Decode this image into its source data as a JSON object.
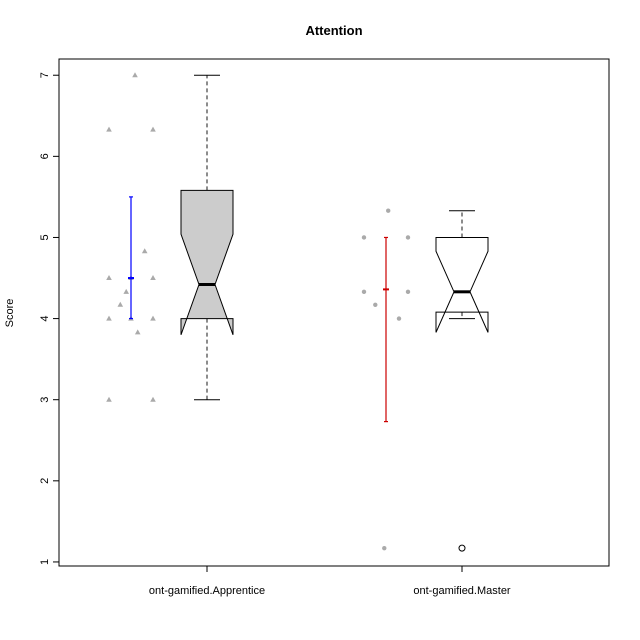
{
  "chart_data": {
    "type": "boxplot",
    "title": "Attention",
    "xlabel": "",
    "ylabel": "Score",
    "ylim": [
      0.95,
      7.2
    ],
    "yticks": [
      "1",
      "2",
      "3",
      "4",
      "5",
      "6",
      "7"
    ],
    "grid": false,
    "categories": [
      "ont-gamified.Apprentice",
      "ont-gamified.Master"
    ],
    "groups": [
      {
        "name": "ont-gamified.Apprentice",
        "box_fill": "#cccccc",
        "whisker_low": 3.0,
        "q1": 4.0,
        "median": 4.42,
        "q3": 5.58,
        "whisker_high": 7.0,
        "notch_low": 3.8,
        "notch_high": 5.04,
        "outliers": [],
        "points": [
          7.0,
          6.33,
          6.33,
          4.83,
          4.5,
          4.5,
          4.5,
          4.33,
          4.17,
          4.0,
          4.0,
          4.0,
          3.83,
          3.0,
          3.0
        ],
        "point_shape": "triangle",
        "mean": 4.5,
        "ci_low": 4.0,
        "ci_high": 5.5,
        "ci_color": "#0000ff"
      },
      {
        "name": "ont-gamified.Master",
        "box_fill": "#ffffff",
        "whisker_low": 4.0,
        "q1": 4.08,
        "median": 4.33,
        "q3": 5.0,
        "whisker_high": 5.33,
        "notch_low": 3.83,
        "notch_high": 4.83,
        "outliers": [
          1.17
        ],
        "points": [
          5.33,
          5.0,
          5.0,
          4.33,
          4.33,
          4.17,
          4.0,
          1.17
        ],
        "point_shape": "circle",
        "mean": 4.36,
        "ci_low": 2.73,
        "ci_high": 5.0,
        "ci_color": "#cc0000"
      }
    ],
    "point_color": "#aaaaaa"
  }
}
